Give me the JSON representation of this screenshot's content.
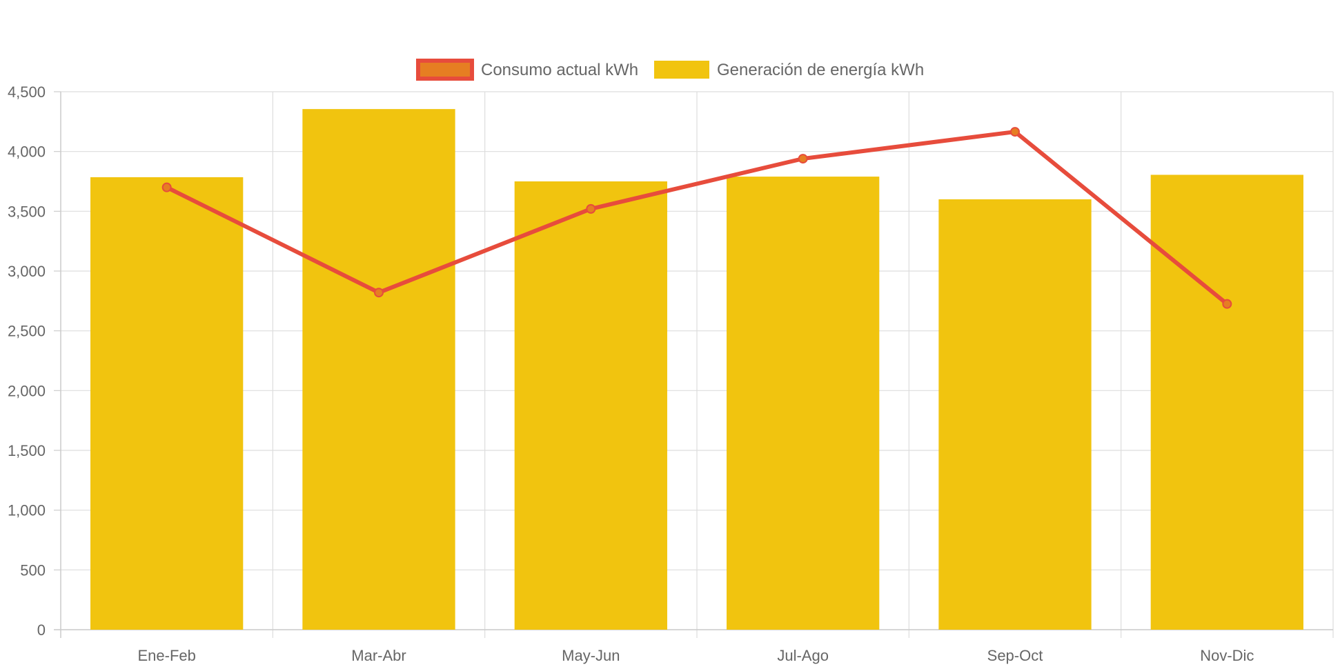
{
  "chart_data": {
    "type": "bar",
    "categories": [
      "Ene-Feb",
      "Mar-Abr",
      "May-Jun",
      "Jul-Ago",
      "Sep-Oct",
      "Nov-Dic"
    ],
    "series": [
      {
        "name": "Consumo actual kWh",
        "type": "line",
        "values": [
          3700,
          2820,
          3520,
          3940,
          4165,
          2725
        ],
        "color": "#e74c3c",
        "point_color": "#e67e22"
      },
      {
        "name": "Generación de energía kWh",
        "type": "bar",
        "values": [
          3785,
          4355,
          3750,
          3790,
          3600,
          3805
        ],
        "color": "#f1c40f"
      }
    ],
    "ylim": [
      0,
      4500
    ],
    "yticks": [
      0,
      500,
      1000,
      1500,
      2000,
      2500,
      3000,
      3500,
      4000,
      4500
    ],
    "ytick_labels": [
      "0",
      "500",
      "1,000",
      "1,500",
      "2,000",
      "2,500",
      "3,000",
      "3,500",
      "4,000",
      "4,500"
    ],
    "grid": true,
    "legend_position": "top-center",
    "title": "",
    "xlabel": "",
    "ylabel": ""
  }
}
